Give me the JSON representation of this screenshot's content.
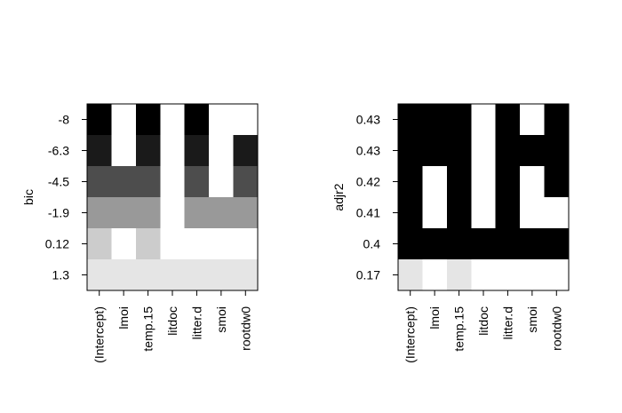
{
  "chart_data": [
    {
      "type": "heatmap",
      "ylabel": "bic",
      "columns": [
        "(Intercept)",
        "lmoi",
        "temp.15",
        "litdoc",
        "litter.d",
        "smoi",
        "rootdw0"
      ],
      "rows": [
        {
          "label": "-8",
          "shade": "#000000",
          "included": [
            1,
            0,
            1,
            0,
            1,
            0,
            0
          ]
        },
        {
          "label": "-6.3",
          "shade": "#1a1a1a",
          "included": [
            1,
            0,
            1,
            0,
            1,
            0,
            1
          ]
        },
        {
          "label": "-4.5",
          "shade": "#4d4d4d",
          "included": [
            1,
            1,
            1,
            0,
            1,
            0,
            1
          ]
        },
        {
          "label": "-1.9",
          "shade": "#999999",
          "included": [
            1,
            1,
            1,
            0,
            1,
            1,
            1
          ]
        },
        {
          "label": "0.12",
          "shade": "#cccccc",
          "included": [
            1,
            0,
            1,
            0,
            0,
            0,
            0
          ]
        },
        {
          "label": "1.3",
          "shade": "#e5e5e5",
          "included": [
            1,
            1,
            1,
            1,
            1,
            1,
            1
          ]
        }
      ]
    },
    {
      "type": "heatmap",
      "ylabel": "adjr2",
      "columns": [
        "(Intercept)",
        "lmoi",
        "temp.15",
        "litdoc",
        "litter.d",
        "smoi",
        "rootdw0"
      ],
      "rows": [
        {
          "label": "0.43",
          "shade": "#000000",
          "included": [
            1,
            1,
            1,
            0,
            1,
            0,
            1
          ]
        },
        {
          "label": "0.43",
          "shade": "#000000",
          "included": [
            1,
            1,
            1,
            0,
            1,
            1,
            1
          ]
        },
        {
          "label": "0.42",
          "shade": "#000000",
          "included": [
            1,
            0,
            1,
            0,
            1,
            0,
            1
          ]
        },
        {
          "label": "0.41",
          "shade": "#000000",
          "included": [
            1,
            0,
            1,
            0,
            1,
            0,
            0
          ]
        },
        {
          "label": "0.4",
          "shade": "#000000",
          "included": [
            1,
            1,
            1,
            1,
            1,
            1,
            1
          ]
        },
        {
          "label": "0.17",
          "shade": "#e5e5e5",
          "included": [
            1,
            0,
            1,
            0,
            0,
            0,
            0
          ]
        }
      ]
    }
  ]
}
